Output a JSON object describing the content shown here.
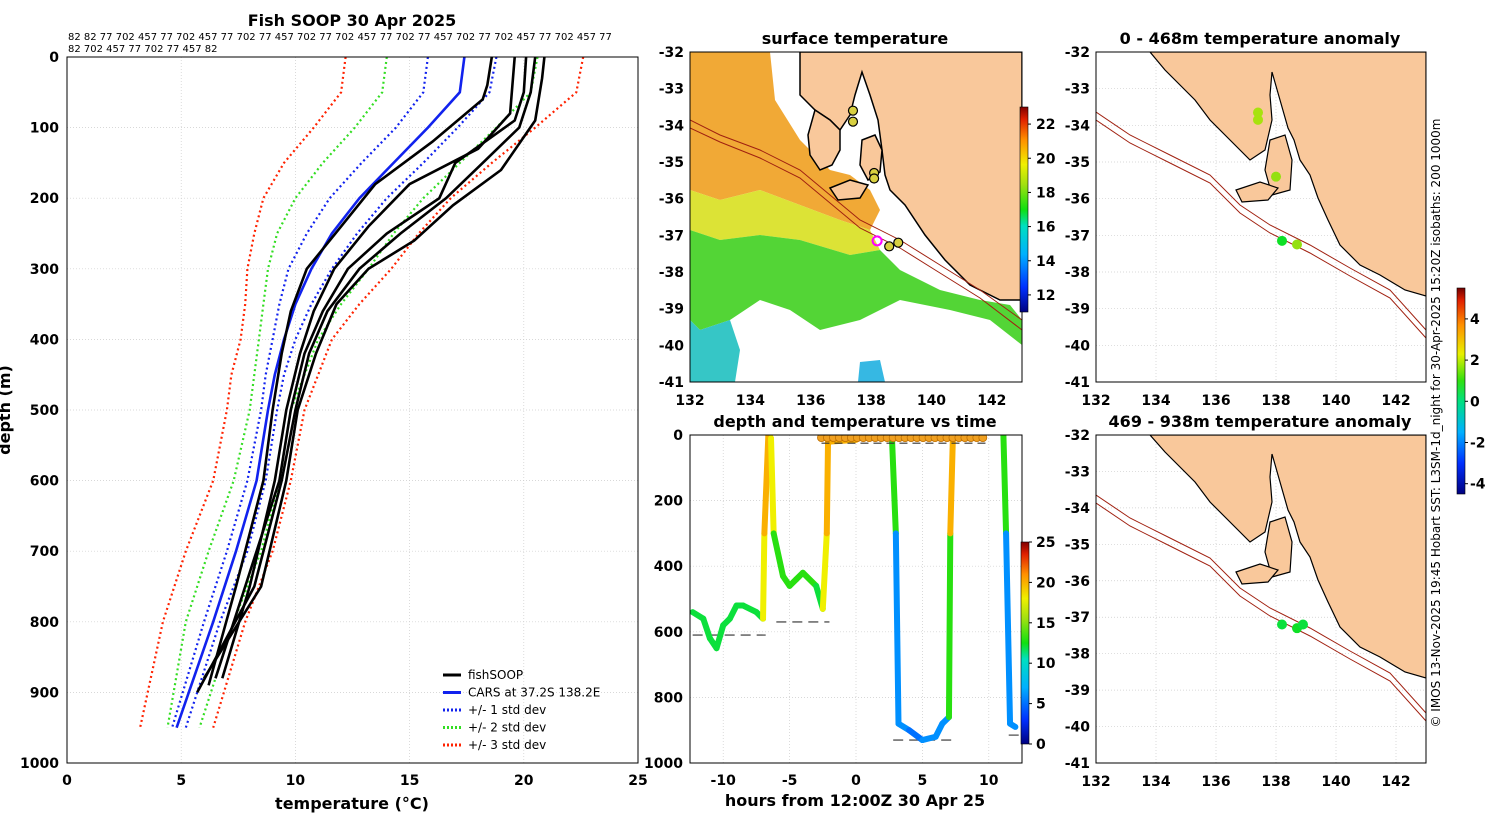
{
  "figure": {
    "credit": "© IMOS 13-Nov-2025 19:45 Hobart SST: L3SM-1d_night for 30-Apr-2025 15:20Z isobaths: 200  1000m"
  },
  "chart_data": [
    {
      "type": "line",
      "id": "profile",
      "title": "Fish SOOP 30 Apr 2025",
      "xlabel": "temperature (°C)",
      "ylabel": "depth (m)",
      "xlim": [
        0,
        25
      ],
      "ylim": [
        1000,
        0
      ],
      "xticks": [
        "0",
        "5",
        "10",
        "15",
        "20",
        "25"
      ],
      "yticks": [
        "0",
        "100",
        "200",
        "300",
        "400",
        "500",
        "600",
        "700",
        "800",
        "900",
        "1000"
      ],
      "grid": true,
      "legend_position": "bottom-right",
      "top_labels": [
        "82 82 77 702 457 77 702 457 77 702 77 457 702 77 702 457 77 702 77 457 702 77 702 457 77 702 457 77",
        "82 702 457 77 702 77 457 82"
      ],
      "series": [
        {
          "name": "+/- 3 std dev",
          "color": "#ff2200",
          "style": "dotted",
          "side": "low",
          "temp": [
            12.2,
            12.0,
            10.8,
            9.5,
            8.6,
            8.2,
            7.9,
            7.8,
            7.6,
            7.2,
            7.0,
            6.4,
            5.2,
            4.2,
            3.2
          ],
          "depth": [
            0,
            50,
            100,
            150,
            200,
            250,
            300,
            350,
            400,
            450,
            500,
            600,
            700,
            800,
            950
          ]
        },
        {
          "name": "+/- 3 std dev",
          "color": "#ff2200",
          "style": "dotted",
          "side": "high",
          "temp": [
            22.6,
            22.3,
            20.5,
            18.6,
            16.8,
            15.4,
            14.2,
            12.8,
            11.6,
            11.0,
            10.4,
            9.8,
            9.0,
            7.8,
            6.4
          ],
          "depth": [
            0,
            50,
            100,
            150,
            200,
            250,
            300,
            350,
            400,
            450,
            500,
            600,
            700,
            800,
            950
          ]
        },
        {
          "name": "+/- 2 std dev",
          "color": "#33dd22",
          "style": "dotted",
          "side": "low",
          "temp": [
            14.0,
            13.8,
            12.6,
            11.2,
            10.0,
            9.2,
            8.8,
            8.6,
            8.4,
            8.2,
            8.0,
            7.3,
            6.2,
            5.2,
            4.4
          ],
          "depth": [
            0,
            50,
            100,
            150,
            200,
            250,
            300,
            350,
            400,
            450,
            500,
            600,
            700,
            800,
            950
          ]
        },
        {
          "name": "+/- 2 std dev",
          "color": "#33dd22",
          "style": "dotted",
          "side": "high",
          "temp": [
            20.6,
            20.3,
            18.8,
            17.2,
            15.6,
            14.3,
            13.2,
            12.0,
            11.0,
            10.4,
            9.8,
            9.3,
            8.5,
            7.3,
            5.8
          ],
          "depth": [
            0,
            50,
            100,
            150,
            200,
            250,
            300,
            350,
            400,
            450,
            500,
            600,
            700,
            800,
            950
          ]
        },
        {
          "name": "+/- 1 std dev",
          "color": "#1122ee",
          "style": "dotted",
          "side": "low",
          "temp": [
            15.8,
            15.6,
            14.4,
            12.9,
            11.5,
            10.5,
            9.7,
            9.3,
            9.0,
            8.7,
            8.5,
            7.9,
            7.0,
            6.0,
            4.6
          ],
          "depth": [
            0,
            50,
            100,
            150,
            200,
            250,
            300,
            350,
            400,
            450,
            500,
            600,
            700,
            800,
            950
          ]
        },
        {
          "name": "+/- 1 std dev",
          "color": "#1122ee",
          "style": "dotted",
          "side": "high",
          "temp": [
            18.8,
            18.5,
            17.1,
            15.6,
            14.0,
            12.7,
            11.6,
            10.7,
            10.0,
            9.5,
            9.2,
            8.7,
            7.9,
            6.7,
            5.2
          ],
          "depth": [
            0,
            50,
            100,
            150,
            200,
            250,
            300,
            350,
            400,
            450,
            500,
            600,
            700,
            800,
            950
          ]
        },
        {
          "name": "CARS at 37.2S 138.2E",
          "color": "#1122ee",
          "style": "solid",
          "temp": [
            17.4,
            17.2,
            15.8,
            14.3,
            12.8,
            11.6,
            10.7,
            10.0,
            9.5,
            9.1,
            8.8,
            8.3,
            7.4,
            6.4,
            4.8
          ],
          "depth": [
            0,
            50,
            100,
            150,
            200,
            250,
            300,
            350,
            400,
            450,
            500,
            600,
            700,
            800,
            950
          ]
        },
        {
          "name": "fishSOOP",
          "color": "#000000",
          "style": "solid",
          "temp": [
            18.6,
            18.4,
            18.2,
            16.0,
            13.5,
            12.0,
            10.5,
            9.8,
            9.4,
            9.0,
            8.6,
            7.4,
            6.2
          ],
          "depth": [
            0,
            40,
            60,
            120,
            180,
            240,
            300,
            360,
            420,
            500,
            600,
            750,
            890
          ]
        },
        {
          "name": "fishSOOP",
          "color": "#000000",
          "style": "solid",
          "temp": [
            19.6,
            19.5,
            19.4,
            18.0,
            15.0,
            13.2,
            11.7,
            10.8,
            10.2,
            9.6,
            9.1,
            8.0,
            6.8
          ],
          "depth": [
            0,
            40,
            80,
            130,
            180,
            240,
            300,
            360,
            420,
            500,
            600,
            750,
            880
          ]
        },
        {
          "name": "fishSOOP",
          "color": "#000000",
          "style": "solid",
          "temp": [
            20.1,
            20.0,
            19.6,
            17.0,
            16.3,
            14.0,
            12.3,
            11.2,
            10.4,
            9.8,
            9.3,
            7.8,
            6.5
          ],
          "depth": [
            0,
            50,
            90,
            150,
            200,
            250,
            300,
            360,
            420,
            500,
            600,
            750,
            880
          ]
        },
        {
          "name": "fishSOOP",
          "color": "#000000",
          "style": "solid",
          "temp": [
            20.5,
            20.3,
            19.8,
            18.2,
            16.6,
            14.6,
            12.8,
            11.4,
            10.6,
            10.0,
            9.4,
            8.2,
            5.7
          ],
          "depth": [
            0,
            50,
            100,
            150,
            200,
            250,
            300,
            360,
            420,
            500,
            600,
            750,
            900
          ]
        },
        {
          "name": "fishSOOP",
          "color": "#000000",
          "style": "solid",
          "temp": [
            20.9,
            20.8,
            20.5,
            19.0,
            16.9,
            15.2,
            13.2,
            11.8,
            10.9,
            10.1,
            9.6,
            8.5,
            6.0
          ],
          "depth": [
            0,
            30,
            90,
            160,
            210,
            260,
            300,
            350,
            420,
            500,
            600,
            750,
            880
          ]
        }
      ]
    },
    {
      "type": "heatmap",
      "id": "surface",
      "title": "surface temperature",
      "xlim": [
        132,
        143
      ],
      "ylim": [
        -41,
        -32
      ],
      "xticks": [
        "132",
        "134",
        "136",
        "138",
        "140",
        "142"
      ],
      "yticks": [
        "-32",
        "-33",
        "-34",
        "-35",
        "-36",
        "-37",
        "-38",
        "-39",
        "-40",
        "-41"
      ],
      "colorbar": {
        "min": 11,
        "max": 23,
        "ticks": [
          "12",
          "14",
          "16",
          "18",
          "20",
          "22"
        ]
      },
      "markers": [
        {
          "lon": 137.4,
          "lat": -33.6
        },
        {
          "lon": 137.4,
          "lat": -33.9
        },
        {
          "lon": 138.1,
          "lat": -35.3
        },
        {
          "lon": 138.1,
          "lat": -35.45
        },
        {
          "lon": 138.2,
          "lat": -37.15,
          "highlight": true
        },
        {
          "lon": 138.6,
          "lat": -37.3
        },
        {
          "lon": 138.9,
          "lat": -37.2
        }
      ]
    },
    {
      "type": "scatter",
      "id": "timeseries",
      "title": "depth and temperature vs time",
      "xlabel": "hours from 12:00Z 30 Apr 25",
      "xlim": [
        -12.5,
        12.5
      ],
      "ylim": [
        1000,
        0
      ],
      "xticks": [
        "-10",
        "-5",
        "0",
        "5",
        "10"
      ],
      "yticks": [
        "0",
        "200",
        "400",
        "600",
        "800",
        "1000"
      ],
      "colorbar": {
        "min": 0,
        "max": 25,
        "ticks": [
          "0",
          "5",
          "10",
          "15",
          "20",
          "25"
        ]
      },
      "bottom_depth": [
        {
          "x": [
            -12.3,
            -6.8
          ],
          "depth": 610
        },
        {
          "x": [
            -6.0,
            -2.0
          ],
          "depth": 570
        },
        {
          "x": [
            2.8,
            7.3
          ],
          "depth": 930
        },
        {
          "x": [
            11.5,
            12.5
          ],
          "depth": 915
        }
      ],
      "trace": {
        "hours": [
          -12.3,
          -11.5,
          -11,
          -10.5,
          -10,
          -9.5,
          -9,
          -8.5,
          -7.5,
          -7.0,
          -6.9,
          -6.6,
          -6.4,
          -6.2,
          -5.5,
          -5.0,
          -4.5,
          -4.0,
          -3.0,
          -2.5,
          -2.2,
          -2.1,
          -1.9,
          0,
          4,
          10.5,
          2.7,
          3.0,
          3.2,
          4,
          5,
          6,
          6.5,
          7.0,
          7.1,
          7.3,
          11.1,
          11.3,
          11.6,
          12.0
        ],
        "depth": [
          540,
          560,
          620,
          650,
          580,
          560,
          520,
          520,
          540,
          560,
          300,
          0,
          10,
          300,
          430,
          460,
          440,
          420,
          460,
          530,
          300,
          0,
          20,
          15,
          10,
          5,
          0,
          300,
          880,
          900,
          930,
          920,
          880,
          860,
          300,
          0,
          0,
          300,
          880,
          890
        ],
        "temp": [
          12,
          12,
          12,
          12,
          12,
          12,
          12,
          12,
          12,
          12,
          18,
          20,
          20,
          18,
          13,
          13,
          13,
          13,
          13,
          12,
          18,
          20,
          20,
          20,
          20,
          20,
          20,
          13,
          6,
          6,
          5,
          6,
          6,
          6,
          13,
          20,
          20,
          13,
          6,
          6
        ]
      }
    },
    {
      "type": "scatter",
      "id": "anomaly-upper",
      "title": "0 - 468m temperature anomaly",
      "xlim": [
        132,
        143
      ],
      "ylim": [
        -41,
        -32
      ],
      "xticks": [
        "132",
        "134",
        "136",
        "138",
        "140",
        "142"
      ],
      "yticks": [
        "-32",
        "-33",
        "-34",
        "-35",
        "-36",
        "-37",
        "-38",
        "-39",
        "-40",
        "-41"
      ],
      "points": [
        {
          "lon": 137.4,
          "lat": -33.65,
          "anomaly": 1.8
        },
        {
          "lon": 137.4,
          "lat": -33.85,
          "anomaly": 1.8
        },
        {
          "lon": 138.0,
          "lat": -35.4,
          "anomaly": 1.6
        },
        {
          "lon": 138.2,
          "lat": -37.15,
          "anomaly": 0.4
        },
        {
          "lon": 138.7,
          "lat": -37.25,
          "anomaly": 1.6
        }
      ]
    },
    {
      "type": "scatter",
      "id": "anomaly-lower",
      "title": "469 - 938m temperature anomaly",
      "xlim": [
        132,
        143
      ],
      "ylim": [
        -41,
        -32
      ],
      "xticks": [
        "132",
        "134",
        "136",
        "138",
        "140",
        "142"
      ],
      "yticks": [
        "-32",
        "-33",
        "-34",
        "-35",
        "-36",
        "-37",
        "-38",
        "-39",
        "-40",
        "-41"
      ],
      "points": [
        {
          "lon": 138.2,
          "lat": -37.2,
          "anomaly": 0.3
        },
        {
          "lon": 138.7,
          "lat": -37.3,
          "anomaly": 0.4
        },
        {
          "lon": 138.9,
          "lat": -37.2,
          "anomaly": 0.3
        }
      ]
    },
    {
      "type": "heatmap",
      "id": "anomaly-colorbar",
      "colorbar": {
        "min": -4.5,
        "max": 5.5,
        "ticks": [
          "-4",
          "-2",
          "0",
          "2",
          "4"
        ]
      }
    }
  ]
}
